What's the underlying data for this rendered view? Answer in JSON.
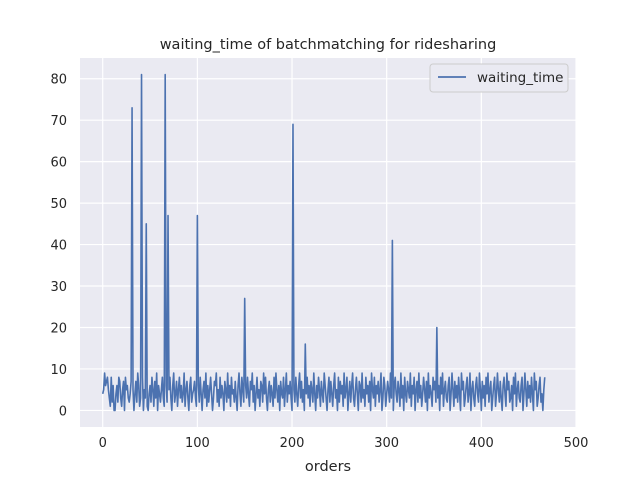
{
  "chart_data": {
    "type": "line",
    "title": "waiting_time of batchmatching for ridesharing",
    "xlabel": "orders",
    "ylabel": "",
    "xlim": [
      -24,
      500
    ],
    "ylim": [
      -4,
      85
    ],
    "x_ticks": [
      0,
      100,
      200,
      300,
      400,
      500
    ],
    "y_ticks": [
      0,
      10,
      20,
      30,
      40,
      50,
      60,
      70,
      80
    ],
    "grid": true,
    "legend_position": "top-right",
    "series": [
      {
        "name": "waiting_time",
        "color": "#4c72b0",
        "x_start": 0,
        "values": [
          4,
          5,
          9,
          6,
          7,
          8,
          5,
          3,
          1,
          8,
          2,
          6,
          0,
          0,
          4,
          6,
          2,
          8,
          7,
          3,
          1,
          5,
          7,
          0,
          8,
          5,
          6,
          3,
          2,
          4,
          7,
          73,
          5,
          0,
          4,
          7,
          2,
          9,
          6,
          1,
          3,
          81,
          8,
          0,
          5,
          3,
          45,
          1,
          0,
          4,
          6,
          2,
          8,
          5,
          1,
          7,
          3,
          9,
          0,
          6,
          4,
          2,
          5,
          8,
          3,
          1,
          81,
          6,
          2,
          47,
          5,
          8,
          3,
          0,
          6,
          9,
          2,
          4,
          7,
          1,
          5,
          8,
          3,
          6,
          2,
          4,
          9,
          1,
          5,
          7,
          3,
          0,
          6,
          8,
          2,
          4,
          5,
          7,
          3,
          1,
          47,
          6,
          2,
          8,
          4,
          0,
          5,
          7,
          3,
          9,
          1,
          6,
          2,
          5,
          8,
          4,
          0,
          3,
          7,
          6,
          9,
          2,
          5,
          1,
          8,
          3,
          6,
          4,
          0,
          7,
          5,
          2,
          9,
          3,
          6,
          1,
          8,
          4,
          5,
          2,
          7,
          3,
          0,
          6,
          9,
          4,
          1,
          8,
          5,
          2,
          27,
          6,
          3,
          8,
          4,
          1,
          7,
          5,
          9,
          2,
          6,
          0,
          4,
          8,
          3,
          5,
          1,
          7,
          6,
          2,
          9,
          4,
          8,
          3,
          0,
          5,
          7,
          2,
          6,
          4,
          1,
          8,
          3,
          9,
          5,
          2,
          6,
          0,
          7,
          4,
          3,
          8,
          1,
          5,
          9,
          2,
          6,
          4,
          7,
          3,
          0,
          69,
          5,
          2,
          8,
          4,
          1,
          6,
          9,
          3,
          7,
          2,
          5,
          0,
          16,
          4,
          8,
          3,
          6,
          1,
          7,
          5,
          2,
          9,
          4,
          0,
          6,
          3,
          8,
          5,
          1,
          7,
          4,
          2,
          9,
          6,
          3,
          0,
          5,
          8,
          2,
          7,
          4,
          1,
          6,
          9,
          3,
          5,
          0,
          8,
          2,
          7,
          4,
          6,
          1,
          9,
          3,
          5,
          8,
          0,
          4,
          7,
          2,
          6,
          9,
          3,
          1,
          5,
          8,
          4,
          0,
          7,
          6,
          2,
          9,
          3,
          5,
          1,
          8,
          4,
          6,
          2,
          7,
          0,
          9,
          5,
          3,
          8,
          1,
          6,
          4,
          7,
          2,
          5,
          9,
          0,
          3,
          8,
          6,
          1,
          4,
          7,
          5,
          2,
          9,
          3,
          41,
          0,
          6,
          8,
          4,
          2,
          7,
          5,
          1,
          9,
          3,
          6,
          0,
          8,
          4,
          2,
          7,
          5,
          3,
          9,
          1,
          6,
          4,
          8,
          0,
          5,
          7,
          2,
          9,
          3,
          6,
          1,
          4,
          8,
          5,
          2,
          7,
          0,
          9,
          3,
          6,
          4,
          1,
          8,
          5,
          7,
          2,
          20,
          3,
          6,
          0,
          8,
          4,
          9,
          1,
          5,
          7,
          3,
          2,
          6,
          8,
          0,
          4,
          9,
          5,
          1,
          7,
          3,
          6,
          2,
          8,
          4,
          0,
          9,
          5,
          7,
          1,
          3,
          6,
          8,
          2,
          4,
          9,
          0,
          5,
          7,
          3,
          1,
          6,
          8,
          4,
          2,
          9,
          5,
          0,
          7,
          3,
          6,
          1,
          8,
          4,
          9,
          2,
          5,
          7,
          0,
          3,
          6,
          8,
          1,
          4,
          9,
          5,
          2,
          7,
          3,
          0,
          6,
          8,
          4,
          1,
          9,
          5,
          7,
          2,
          3,
          6,
          0,
          8,
          4,
          9,
          1,
          5,
          7,
          3,
          2,
          6,
          8,
          0,
          4,
          9,
          5,
          1,
          7,
          3,
          6,
          2,
          8,
          4,
          0,
          9,
          5,
          7,
          1,
          3,
          6,
          8,
          2,
          4,
          0,
          5,
          8
        ]
      }
    ]
  }
}
